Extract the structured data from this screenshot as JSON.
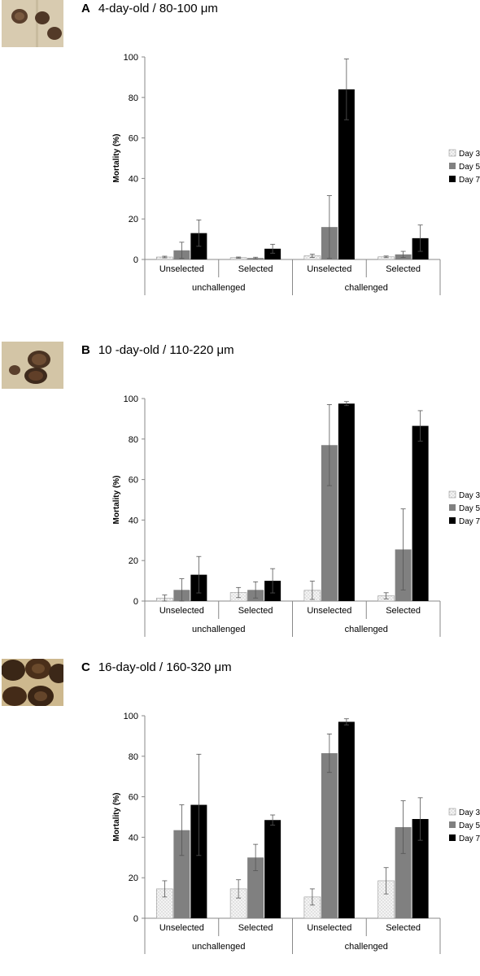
{
  "chart_data": [
    {
      "type": "bar",
      "panel_letter": "A",
      "title": "4-day-old / 80-100 μm",
      "ylabel": "Mortality (%)",
      "ylim": [
        0,
        100
      ],
      "yticks": [
        "0",
        "20",
        "40",
        "60",
        "80",
        "100"
      ],
      "categories": [
        "Unselected",
        "Selected",
        "Unselected",
        "Selected"
      ],
      "groups": [
        "unchallenged",
        "challenged"
      ],
      "legend_position": "right",
      "series": [
        {
          "name": "Day 3",
          "fill": "#f2f2f2",
          "pattern": "dots",
          "values": [
            1.2,
            0.9,
            1.8,
            1.3
          ],
          "errors": [
            0.4,
            0.3,
            0.8,
            0.4
          ]
        },
        {
          "name": "Day 5",
          "fill": "#808080",
          "pattern": "solid",
          "values": [
            4.5,
            0.7,
            16,
            2.5
          ],
          "errors": [
            4,
            0.4,
            15.5,
            1.5
          ]
        },
        {
          "name": "Day 7",
          "fill": "#000000",
          "pattern": "solid",
          "values": [
            13,
            5.3,
            84,
            10.5
          ],
          "errors": [
            6.5,
            2.2,
            15,
            6.5
          ]
        }
      ]
    },
    {
      "type": "bar",
      "panel_letter": "B",
      "title": "10 -day-old / 110-220 μm",
      "ylabel": "Mortality (%)",
      "ylim": [
        0,
        100
      ],
      "yticks": [
        "0",
        "20",
        "40",
        "60",
        "80",
        "100"
      ],
      "categories": [
        "Unselected",
        "Selected",
        "Unselected",
        "Selected"
      ],
      "groups": [
        "unchallenged",
        "challenged"
      ],
      "legend_position": "right",
      "series": [
        {
          "name": "Day 3",
          "fill": "#f2f2f2",
          "pattern": "dots",
          "values": [
            1.5,
            4.2,
            5.3,
            2.6
          ],
          "errors": [
            1.5,
            2.5,
            4.5,
            1.5
          ]
        },
        {
          "name": "Day 5",
          "fill": "#808080",
          "pattern": "solid",
          "values": [
            5.5,
            5.5,
            77,
            25.5
          ],
          "errors": [
            5.5,
            4,
            20,
            20
          ]
        },
        {
          "name": "Day 7",
          "fill": "#000000",
          "pattern": "solid",
          "values": [
            13,
            10,
            97.5,
            86.5
          ],
          "errors": [
            9,
            6,
            1,
            7.5
          ]
        }
      ]
    },
    {
      "type": "bar",
      "panel_letter": "C",
      "title": "16-day-old / 160-320 μm",
      "ylabel": "Mortality (%)",
      "ylim": [
        0,
        100
      ],
      "yticks": [
        "0",
        "20",
        "40",
        "60",
        "80",
        "100"
      ],
      "categories": [
        "Unselected",
        "Selected",
        "Unselected",
        "Selected"
      ],
      "groups": [
        "unchallenged",
        "challenged"
      ],
      "legend_position": "right",
      "series": [
        {
          "name": "Day 3",
          "fill": "#f2f2f2",
          "pattern": "dots",
          "values": [
            14.5,
            14.5,
            10.5,
            18.5
          ],
          "errors": [
            4,
            4.5,
            4,
            6.5
          ]
        },
        {
          "name": "Day 5",
          "fill": "#808080",
          "pattern": "solid",
          "values": [
            43.5,
            30,
            81.5,
            45
          ],
          "errors": [
            12.5,
            6.5,
            9.5,
            13
          ]
        },
        {
          "name": "Day 7",
          "fill": "#000000",
          "pattern": "solid",
          "values": [
            56,
            48.5,
            97,
            49
          ],
          "errors": [
            25,
            2.5,
            1.5,
            10.5
          ]
        }
      ]
    }
  ]
}
